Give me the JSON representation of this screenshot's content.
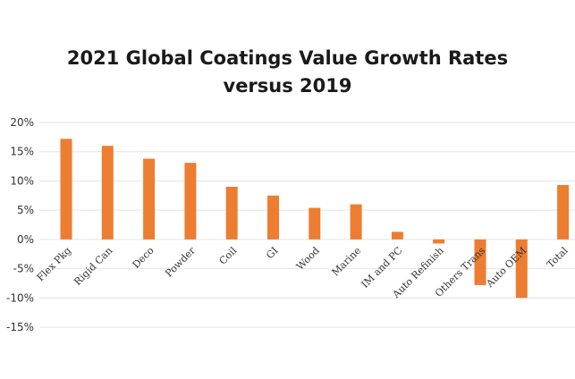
{
  "chart_data": {
    "type": "bar",
    "title": "2021 Global Coatings Value Growth Rates",
    "subtitle": "versus 2019",
    "xlabel": "",
    "ylabel": "",
    "categories": [
      "Flex Pkg",
      "Rigid Can",
      "Deco",
      "Powder",
      "Coil",
      "GI",
      "Wood",
      "Marine",
      "IM and PC",
      "Auto Refinish",
      "Others Trans",
      "Auto OEM",
      "Total"
    ],
    "values": [
      17.2,
      16.0,
      13.8,
      13.1,
      9.0,
      7.5,
      5.4,
      6.0,
      1.3,
      -0.7,
      -7.8,
      -10.0,
      9.3
    ],
    "ylim": [
      -15,
      20
    ],
    "yticks": [
      "20%",
      "15%",
      "10%",
      "5%",
      "0%",
      "-5%",
      "-10%",
      "-15%"
    ],
    "yticks_values": [
      20,
      15,
      10,
      5,
      0,
      -5,
      -10,
      -15
    ],
    "grid": true,
    "bar_color": "#ed7d31"
  }
}
